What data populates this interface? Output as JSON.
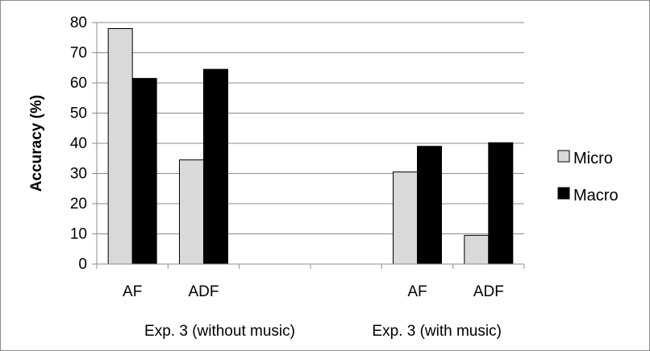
{
  "chart_data": {
    "type": "bar",
    "ylabel": "Accuracy (%)",
    "ylim": [
      0,
      80
    ],
    "yticks": [
      0,
      10,
      20,
      30,
      40,
      50,
      60,
      70,
      80
    ],
    "grid": true,
    "legend_placement": "right",
    "groups": [
      {
        "label": "Exp. 3 (without music)",
        "categories": [
          "AF",
          "ADF"
        ]
      },
      {
        "label": "Exp. 3 (with music)",
        "categories": [
          "AF",
          "ADF"
        ]
      }
    ],
    "categories": [
      "AF",
      "ADF",
      "AF",
      "ADF"
    ],
    "series": [
      {
        "name": "Micro",
        "color": "#d9d9d9",
        "values": [
          78,
          34.5,
          30.5,
          9.5
        ]
      },
      {
        "name": "Macro",
        "color": "#000000",
        "values": [
          61.5,
          64.5,
          39,
          40.2
        ]
      }
    ]
  }
}
